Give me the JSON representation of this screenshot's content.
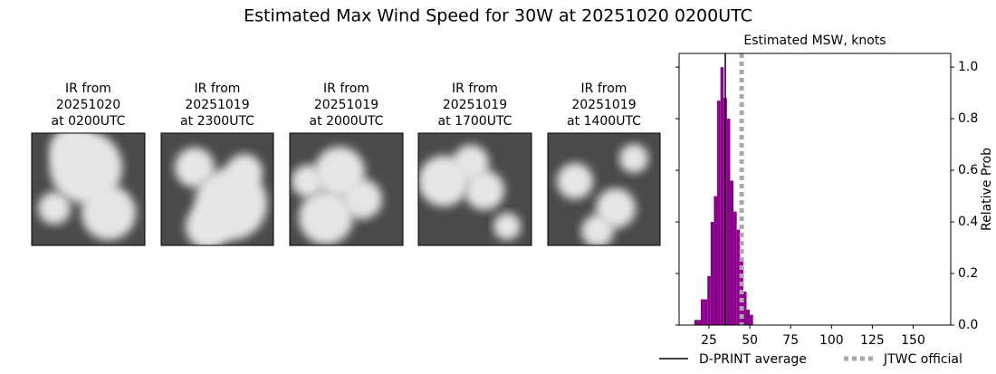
{
  "title": "Estimated Max Wind Speed for 30W at 20251020 0200UTC",
  "images": [
    {
      "title": [
        "IR from",
        "20251020",
        "at 0200UTC"
      ]
    },
    {
      "title": [
        "IR from",
        "20251019",
        "at 2300UTC"
      ]
    },
    {
      "title": [
        "IR from",
        "20251019",
        "at 2000UTC"
      ]
    },
    {
      "title": [
        "IR from",
        "20251019",
        "at 1700UTC"
      ]
    },
    {
      "title": [
        "IR from",
        "20251019",
        "at 1400UTC"
      ]
    }
  ],
  "chart_data": {
    "type": "histogram",
    "title": "Estimated MSW, knots",
    "y_label": "Relative Prob",
    "bins": [
      16,
      18,
      20,
      22,
      24,
      26,
      28,
      30,
      32,
      34,
      36,
      38,
      40,
      42,
      44,
      46,
      48,
      50,
      52
    ],
    "counts": [
      0.02,
      0.02,
      0.1,
      0.1,
      0.19,
      0.4,
      0.5,
      0.87,
      1.0,
      0.88,
      0.8,
      0.56,
      0.44,
      0.37,
      0.26,
      0.13,
      0.06,
      0.04
    ],
    "color": "#8b008b",
    "xlim": [
      6.7,
      173
    ],
    "xticks": [
      25,
      50,
      75,
      100,
      125,
      150
    ],
    "ylim": [
      0,
      1.053
    ],
    "yticks": [
      {
        "value": 0,
        "label": "0.0"
      },
      0.2,
      0.4,
      0.6,
      0.8,
      {
        "value": 1,
        "label": "1.0"
      }
    ],
    "yaxis_side": "right",
    "vlines": [
      {
        "name": "D-PRINT average",
        "value": 35,
        "color": "#000000",
        "style": "solid"
      },
      {
        "name": "JTWC official",
        "value": 45,
        "color": "#aaaaaa",
        "style": "dotted"
      }
    ]
  }
}
